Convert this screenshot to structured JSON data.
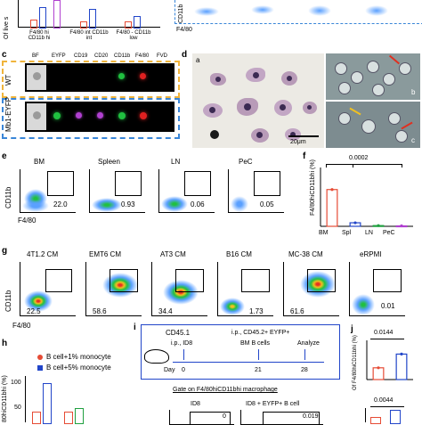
{
  "panels": {
    "top_left": {
      "ylabel": "Of live s",
      "cats": [
        "F4/80 hi CD11b hi",
        "F4/80 int CD11b int",
        "F4/80 - CD11b low"
      ]
    },
    "top_right": {
      "ylabel": "CD11b",
      "xlabel": "F4/80"
    },
    "c": {
      "letter": "c",
      "cols": [
        "BF",
        "EYFP",
        "CD19",
        "CD20",
        "CD11b",
        "F4/80",
        "FVD"
      ],
      "rows": [
        "WT",
        "Mb1-EYFP"
      ]
    },
    "d": {
      "letter": "d",
      "sub_a": "a",
      "sub_b": "b",
      "sub_c": "c",
      "scale": "20μm"
    },
    "e": {
      "letter": "e",
      "titles": [
        "BM",
        "Spleen",
        "LN",
        "PeC"
      ],
      "values": [
        "22.0",
        "0.93",
        "0.06",
        "0.05"
      ],
      "ylabel": "CD11b",
      "xlabel": "F4/80"
    },
    "f": {
      "letter": "f",
      "ylabel": "F4/80hiCD11bhi (%)",
      "pval": "0.0002",
      "cats": [
        "BM",
        "Spl",
        "LN",
        "PeC"
      ]
    },
    "g": {
      "letter": "g",
      "titles": [
        "4T1.2 CM",
        "EMT6 CM",
        "AT3 CM",
        "B16 CM",
        "MC-38 CM",
        "eRPMI"
      ],
      "values": [
        "22.5",
        "58.6",
        "34.4",
        "1.73",
        "61.6",
        "0.01"
      ],
      "ylabel": "CD11b",
      "xlabel": "F4/80"
    },
    "h": {
      "letter": "h",
      "legend1": "B cell+1% monocyte",
      "legend2": "B cell+5% monocyte",
      "ylabel": "80hiCD11bhi (%)",
      "ticks": [
        "100",
        "50"
      ]
    },
    "i": {
      "letter": "i",
      "mouse": "CD45.1",
      "ip1": "i.p., ID8",
      "ip2": "i.p., CD45.2+ EYFP+",
      "ip3": "BM B cells",
      "analyze": "Analyze",
      "day": "Day",
      "days": [
        "0",
        "21",
        "28"
      ],
      "gate": "Gate on F4/80hiCD11bhi macrophage",
      "g1": "ID8",
      "g2": "ID8 + EYFP+ B cell",
      "v1": "0",
      "v2": "0.019"
    },
    "j": {
      "letter": "j",
      "pval1": "0.0144",
      "pval2": "0.0044",
      "ylabel": "Of F4/80hiCD11bhi (%)"
    }
  },
  "colors": {
    "red": "#e64b35",
    "blue": "#2145c9",
    "green": "#20a040",
    "purple": "#b040d0",
    "orange": "#f0a020",
    "dashblue": "#3a86d8",
    "dashorange": "#f0b43c"
  },
  "chart_data": [
    {
      "type": "bar",
      "panel": "f",
      "categories": [
        "BM",
        "Spl",
        "LN",
        "PeC"
      ],
      "values": [
        25,
        2.4,
        0.5,
        0.3
      ],
      "ylabel": "F4/80hiCD11bhi (%)",
      "ylim": [
        0,
        40
      ]
    },
    {
      "type": "bar",
      "panel": "j",
      "categories": [
        "",
        ""
      ],
      "values": [
        0.3,
        0.65
      ],
      "ylabel": "Of F4/80hiCD11bhi (%)",
      "ylim": [
        0,
        1
      ]
    }
  ]
}
